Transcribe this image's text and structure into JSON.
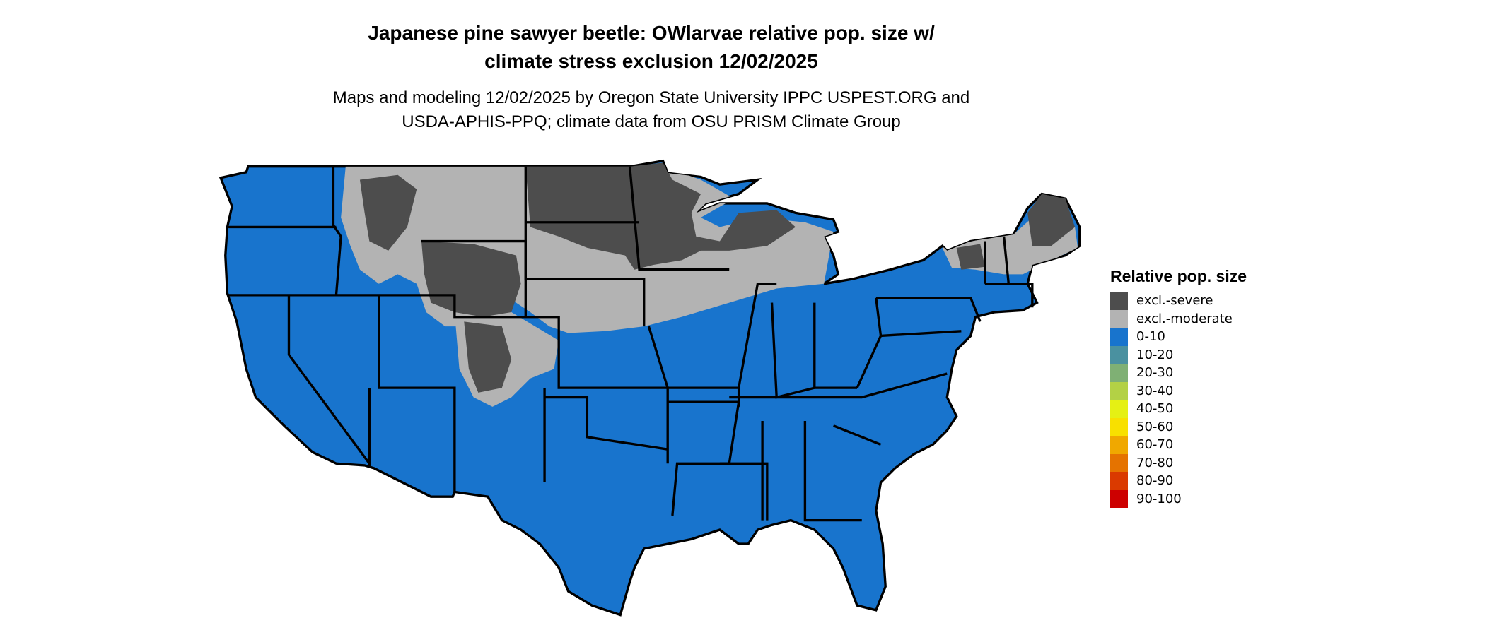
{
  "title": {
    "line1": "Japanese pine sawyer beetle: OWlarvae relative pop. size w/",
    "line2": "climate stress exclusion 12/02/2025"
  },
  "subtitle": {
    "line1": "Maps and modeling 12/02/2025 by Oregon State University IPPC USPEST.ORG and",
    "line2": "USDA-APHIS-PPQ; climate data from OSU PRISM Climate Group"
  },
  "map": {
    "region": "Contiguous United States",
    "base_color": "#1874CD",
    "state_border_color": "#000000"
  },
  "legend": {
    "title": "Relative pop. size",
    "items": [
      {
        "label": "excl.-severe",
        "color": "#4D4D4D"
      },
      {
        "label": "excl.-moderate",
        "color": "#B3B3B3"
      },
      {
        "label": "0-10",
        "color": "#1874CD"
      },
      {
        "label": "10-20",
        "color": "#4A91A0"
      },
      {
        "label": "20-30",
        "color": "#7FB074"
      },
      {
        "label": "30-40",
        "color": "#B3D145"
      },
      {
        "label": "40-50",
        "color": "#E5F014"
      },
      {
        "label": "50-60",
        "color": "#F8E000"
      },
      {
        "label": "60-70",
        "color": "#F0A800"
      },
      {
        "label": "70-80",
        "color": "#E57300"
      },
      {
        "label": "80-90",
        "color": "#DA3A00"
      },
      {
        "label": "90-100",
        "color": "#CD0000"
      }
    ]
  }
}
